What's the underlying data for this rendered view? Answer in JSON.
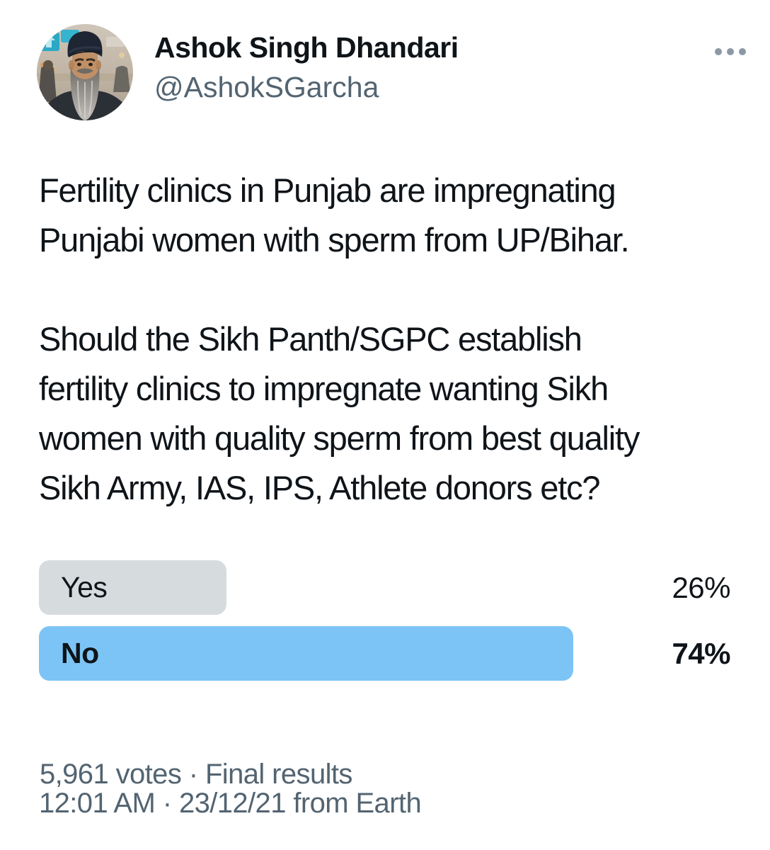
{
  "tweet": {
    "author": {
      "name": "Ashok Singh Dhandari",
      "handle": "@AshokSGarcha"
    },
    "body_lines": [
      [
        "Fertility clinics in Punjab are impregnating",
        "Punjabi women with sperm from UP/Bihar."
      ],
      [
        "Should the Sikh Panth/SGPC establish",
        "fertility clinics to impregnate wanting Sikh",
        "women with quality sperm from best quality",
        "Sikh Army, IAS, IPS, Athlete donors etc?"
      ]
    ],
    "poll": {
      "options": [
        {
          "label": "Yes",
          "percent": "26%",
          "value": 26,
          "winner": false
        },
        {
          "label": "No",
          "percent": "74%",
          "value": 74,
          "winner": true
        }
      ],
      "votes_summary": "5,961 votes · Final results"
    },
    "timestamp": "12:01 AM · 23/12/21 from Earth"
  },
  "icons": {
    "more": "more-options-ellipsis"
  },
  "colors": {
    "text_primary": "#0f1419",
    "text_secondary": "#536471",
    "poll_bar_default": "#d6dbde",
    "poll_bar_winner": "#7cc4f5",
    "more_icon": "#8b98a5",
    "background": "#ffffff"
  }
}
